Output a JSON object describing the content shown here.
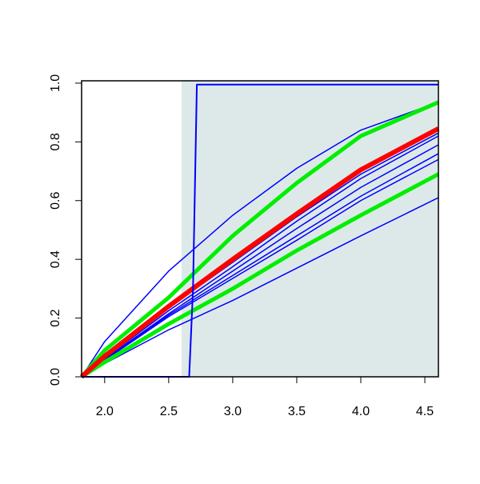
{
  "chart_data": {
    "type": "line",
    "xlim": [
      1.82,
      4.606
    ],
    "ylim": [
      0,
      1.008
    ],
    "xticks": [
      {
        "value": 2.0,
        "label": "2.0"
      },
      {
        "value": 2.5,
        "label": "2.5"
      },
      {
        "value": 3.0,
        "label": "3.0"
      },
      {
        "value": 3.5,
        "label": "3.5"
      },
      {
        "value": 4.0,
        "label": "4.0"
      },
      {
        "value": 4.5,
        "label": "4.5"
      }
    ],
    "yticks": [
      {
        "value": 0,
        "label": "0.0"
      },
      {
        "value": 0.2,
        "label": "0.2"
      },
      {
        "value": 0.4,
        "label": "0.4"
      },
      {
        "value": 0.6,
        "label": "0.6"
      },
      {
        "value": 0.8,
        "label": "0.8"
      },
      {
        "value": 1.0,
        "label": "1.0"
      }
    ],
    "shaded_from": 2.6,
    "shade_color": "#dde9e9",
    "series": [
      {
        "color": "#0000ff",
        "width": 1.5,
        "x": [
          1.82,
          2.0,
          2.5,
          3.0,
          3.5,
          4.0,
          4.606
        ],
        "values": [
          0,
          0.12,
          0.36,
          0.55,
          0.71,
          0.84,
          0.935
        ]
      },
      {
        "color": "#0000ff",
        "width": 1.5,
        "x": [
          1.82,
          2.0,
          2.5,
          3.0,
          3.5,
          4.0,
          4.606
        ],
        "values": [
          0,
          0.065,
          0.235,
          0.39,
          0.545,
          0.69,
          0.83
        ]
      },
      {
        "color": "#0000ff",
        "width": 1.5,
        "x": [
          1.82,
          2.0,
          2.5,
          3.0,
          3.5,
          4.0,
          4.606
        ],
        "values": [
          0,
          0.063,
          0.225,
          0.375,
          0.53,
          0.675,
          0.82
        ]
      },
      {
        "color": "#0000ff",
        "width": 1.5,
        "x": [
          1.82,
          2.0,
          2.5,
          3.0,
          3.5,
          4.0,
          4.606
        ],
        "values": [
          0,
          0.06,
          0.215,
          0.36,
          0.505,
          0.645,
          0.79
        ]
      },
      {
        "color": "#0000ff",
        "width": 1.5,
        "x": [
          1.82,
          2.0,
          2.5,
          3.0,
          3.5,
          4.0,
          4.606
        ],
        "values": [
          0,
          0.058,
          0.21,
          0.345,
          0.48,
          0.615,
          0.76
        ]
      },
      {
        "color": "#0000ff",
        "width": 1.5,
        "x": [
          1.82,
          2.0,
          2.5,
          3.0,
          3.5,
          4.0,
          4.606
        ],
        "values": [
          0,
          0.056,
          0.205,
          0.335,
          0.465,
          0.6,
          0.74
        ]
      },
      {
        "color": "#0000ff",
        "width": 1.5,
        "x": [
          1.82,
          2.0,
          2.5,
          3.0,
          3.5,
          4.0,
          4.606
        ],
        "values": [
          0,
          0.045,
          0.16,
          0.26,
          0.37,
          0.48,
          0.61
        ]
      },
      {
        "color": "#00ee00",
        "width": 5,
        "x": [
          1.82,
          2.0,
          2.5,
          3.0,
          3.5,
          4.0,
          4.606
        ],
        "values": [
          0,
          0.09,
          0.27,
          0.48,
          0.66,
          0.82,
          0.935
        ]
      },
      {
        "color": "#00ee00",
        "width": 5,
        "x": [
          1.82,
          2.0,
          2.5,
          3.0,
          3.5,
          4.0,
          4.606
        ],
        "values": [
          0,
          0.05,
          0.18,
          0.3,
          0.43,
          0.55,
          0.69
        ]
      },
      {
        "color": "#ff0000",
        "width": 6,
        "x": [
          1.82,
          2.0,
          2.5,
          3.0,
          3.5,
          4.0,
          4.606
        ],
        "values": [
          0,
          0.07,
          0.24,
          0.4,
          0.555,
          0.705,
          0.845
        ]
      },
      {
        "color": "#0000ff",
        "width": 2,
        "x": [
          1.82,
          2.66,
          2.69,
          2.72,
          4.606
        ],
        "values": [
          0,
          0,
          0.3,
          0.995,
          0.995
        ]
      }
    ]
  }
}
